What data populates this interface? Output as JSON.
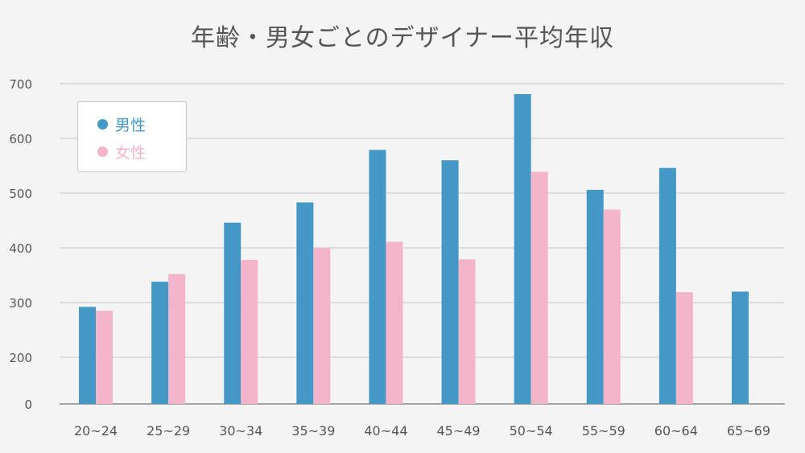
{
  "chart_data": {
    "type": "bar",
    "title": "年齢・男女ごとのデザイナー平均年収",
    "categories": [
      "20~24",
      "25~29",
      "30~34",
      "35~39",
      "40~44",
      "45~49",
      "50~54",
      "55~59",
      "60~64",
      "65~69"
    ],
    "series": [
      {
        "name": "男性",
        "color": "#4398c6",
        "values": [
          292,
          338,
          446,
          483,
          579,
          560,
          681,
          506,
          546,
          320
        ]
      },
      {
        "name": "女性",
        "color": "#f4b5cb",
        "values": [
          285,
          352,
          378,
          400,
          411,
          379,
          539,
          470,
          319,
          null
        ]
      }
    ],
    "yticks": [
      0,
      200,
      300,
      400,
      500,
      600,
      700
    ],
    "ylim": [
      0,
      700
    ],
    "grid": true,
    "legend_position": "top-left"
  }
}
